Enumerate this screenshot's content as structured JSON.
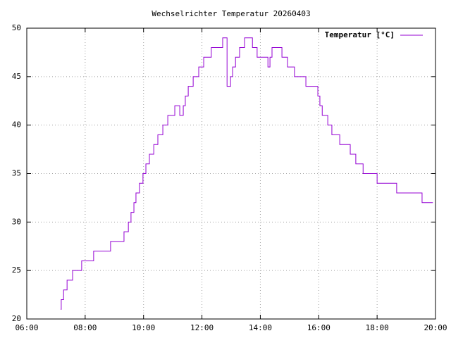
{
  "chart_data": {
    "type": "line",
    "title": "Wechselrichter Temperatur 20260403",
    "x": [
      7.16,
      7.18,
      7.18,
      7.26,
      7.26,
      7.38,
      7.38,
      7.57,
      7.57,
      7.88,
      7.88,
      8.29,
      8.29,
      8.87,
      8.87,
      9.33,
      9.33,
      9.48,
      9.48,
      9.57,
      9.57,
      9.67,
      9.67,
      9.74,
      9.74,
      9.86,
      9.86,
      9.98,
      9.98,
      10.08,
      10.08,
      10.2,
      10.2,
      10.35,
      10.35,
      10.49,
      10.49,
      10.66,
      10.66,
      10.83,
      10.83,
      11.07,
      11.07,
      11.24,
      11.24,
      11.36,
      11.36,
      11.43,
      11.43,
      11.53,
      11.53,
      11.7,
      11.7,
      11.89,
      11.89,
      12.06,
      12.06,
      12.32,
      12.32,
      12.71,
      12.71,
      12.86,
      12.86,
      12.98,
      12.98,
      13.05,
      13.05,
      13.15,
      13.15,
      13.29,
      13.29,
      13.46,
      13.46,
      13.73,
      13.73,
      13.89,
      13.89,
      14.26,
      14.26,
      14.33,
      14.33,
      14.4,
      14.4,
      14.74,
      14.74,
      14.93,
      14.93,
      15.17,
      15.17,
      15.56,
      15.56,
      15.97,
      15.97,
      16.04,
      16.04,
      16.12,
      16.12,
      16.31,
      16.31,
      16.45,
      16.45,
      16.72,
      16.72,
      17.08,
      17.08,
      17.27,
      17.27,
      17.52,
      17.52,
      18,
      18,
      18.67,
      18.67,
      19.54,
      19.54,
      19.91
    ],
    "series": [
      {
        "name": "Temperatur [°C]",
        "color": "#9400d3",
        "values": [
          21,
          21,
          22,
          22,
          23,
          23,
          24,
          24,
          25,
          25,
          26,
          26,
          27,
          27,
          28,
          28,
          29,
          29,
          30,
          30,
          31,
          31,
          32,
          32,
          33,
          33,
          34,
          34,
          35,
          35,
          36,
          36,
          37,
          37,
          38,
          38,
          39,
          39,
          40,
          40,
          41,
          41,
          42,
          42,
          41,
          41,
          42,
          42,
          43,
          43,
          44,
          44,
          45,
          45,
          46,
          46,
          47,
          47,
          48,
          48,
          49,
          49,
          44,
          44,
          45,
          45,
          46,
          46,
          47,
          47,
          48,
          48,
          49,
          49,
          48,
          48,
          47,
          47,
          46,
          46,
          47,
          47,
          48,
          48,
          47,
          47,
          46,
          46,
          45,
          45,
          44,
          44,
          43,
          43,
          42,
          42,
          41,
          41,
          40,
          40,
          39,
          39,
          38,
          38,
          37,
          37,
          36,
          36,
          35,
          35,
          34,
          34,
          33,
          33,
          32,
          32
        ]
      }
    ],
    "xlim": [
      6,
      20
    ],
    "xticks": [
      {
        "value": 6,
        "label": "06:00"
      },
      {
        "value": 8,
        "label": "08:00"
      },
      {
        "value": 10,
        "label": "10:00"
      },
      {
        "value": 12,
        "label": "12:00"
      },
      {
        "value": 14,
        "label": "14:00"
      },
      {
        "value": 16,
        "label": "16:00"
      },
      {
        "value": 18,
        "label": "18:00"
      },
      {
        "value": 20,
        "label": "20:00"
      }
    ],
    "ylim": [
      20,
      50
    ],
    "yticks": [
      20,
      25,
      30,
      35,
      40,
      45,
      50
    ],
    "grid": true,
    "legend": "top-right"
  }
}
